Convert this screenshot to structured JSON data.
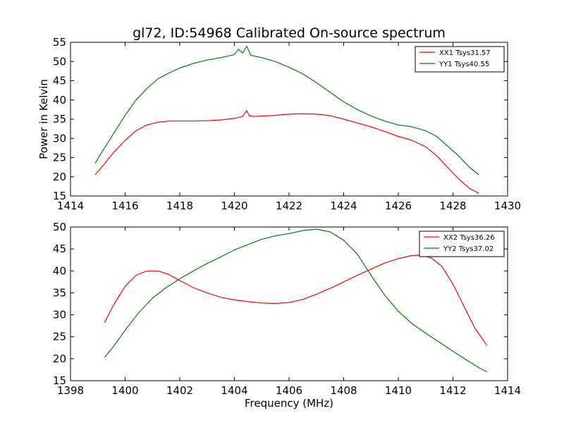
{
  "title": "gl72, ID:54968 Calibrated On-source spectrum",
  "chart_data": [
    {
      "type": "line",
      "title": "gl72, ID:54968 Calibrated On-source spectrum",
      "xlabel": "",
      "ylabel": "Power in Kelvin",
      "xlim": [
        1414,
        1430
      ],
      "ylim": [
        15,
        55
      ],
      "xticks": [
        1414,
        1416,
        1418,
        1420,
        1422,
        1424,
        1426,
        1428,
        1430
      ],
      "yticks": [
        15,
        20,
        25,
        30,
        35,
        40,
        45,
        50,
        55
      ],
      "grid": false,
      "legend_position": "top-right",
      "series": [
        {
          "name": "XX1 Tsys31.57",
          "color": "#ff0000",
          "x": [
            1414.9,
            1415.2,
            1415.6,
            1416.0,
            1416.4,
            1416.8,
            1417.2,
            1417.6,
            1418.0,
            1418.5,
            1419.0,
            1419.5,
            1420.0,
            1420.3,
            1420.45,
            1420.55,
            1420.7,
            1421.0,
            1421.5,
            1422.0,
            1422.5,
            1423.0,
            1423.5,
            1424.0,
            1424.5,
            1425.0,
            1425.5,
            1426.0,
            1426.5,
            1427.0,
            1427.4,
            1427.8,
            1428.2,
            1428.6,
            1428.95
          ],
          "y": [
            20.5,
            23.0,
            26.5,
            29.5,
            32.0,
            33.5,
            34.2,
            34.5,
            34.5,
            34.5,
            34.6,
            34.8,
            35.2,
            35.7,
            37.2,
            35.9,
            35.7,
            35.8,
            36.0,
            36.3,
            36.4,
            36.3,
            35.9,
            35.0,
            34.0,
            33.0,
            31.8,
            30.5,
            29.5,
            27.8,
            25.5,
            22.5,
            19.5,
            17.0,
            15.7
          ]
        },
        {
          "name": "YY1 Tsys40.55",
          "color": "#008000",
          "x": [
            1414.9,
            1415.2,
            1415.6,
            1416.0,
            1416.4,
            1416.8,
            1417.2,
            1417.6,
            1418.0,
            1418.5,
            1419.0,
            1419.5,
            1420.0,
            1420.15,
            1420.3,
            1420.45,
            1420.6,
            1421.0,
            1421.5,
            1422.0,
            1422.5,
            1423.0,
            1423.5,
            1424.0,
            1424.5,
            1425.0,
            1425.5,
            1426.0,
            1426.5,
            1427.0,
            1427.4,
            1427.8,
            1428.2,
            1428.6,
            1428.95
          ],
          "y": [
            23.5,
            27.0,
            31.5,
            36.0,
            40.0,
            43.0,
            45.5,
            47.0,
            48.3,
            49.5,
            50.4,
            51.0,
            51.8,
            53.2,
            52.2,
            54.0,
            51.6,
            51.0,
            50.0,
            48.5,
            46.8,
            44.5,
            42.0,
            39.5,
            37.5,
            35.8,
            34.5,
            33.5,
            33.0,
            32.0,
            30.5,
            28.0,
            25.5,
            22.5,
            20.5
          ]
        }
      ]
    },
    {
      "type": "line",
      "title": "",
      "xlabel": "Frequency (MHz)",
      "ylabel": "",
      "xlim": [
        1398,
        1414
      ],
      "ylim": [
        15,
        50
      ],
      "xticks": [
        1398,
        1400,
        1402,
        1404,
        1406,
        1408,
        1410,
        1412,
        1414
      ],
      "yticks": [
        15,
        20,
        25,
        30,
        35,
        40,
        45,
        50
      ],
      "grid": false,
      "legend_position": "top-right",
      "series": [
        {
          "name": "XX2 Tsys36.26",
          "color": "#ff0000",
          "x": [
            1399.25,
            1399.6,
            1400.0,
            1400.4,
            1400.8,
            1401.2,
            1401.6,
            1402.0,
            1402.5,
            1403.0,
            1403.5,
            1404.0,
            1404.5,
            1405.0,
            1405.5,
            1406.0,
            1406.5,
            1407.0,
            1407.5,
            1408.0,
            1408.5,
            1409.0,
            1409.5,
            1410.0,
            1410.5,
            1410.8,
            1411.2,
            1411.6,
            1412.0,
            1412.4,
            1412.8,
            1413.25
          ],
          "y": [
            28.3,
            32.5,
            36.5,
            39.0,
            40.0,
            40.0,
            39.2,
            37.8,
            36.2,
            35.0,
            34.0,
            33.4,
            33.0,
            32.7,
            32.6,
            32.8,
            33.5,
            34.7,
            36.0,
            37.5,
            39.0,
            40.4,
            41.8,
            42.8,
            43.5,
            43.6,
            43.0,
            41.0,
            37.0,
            32.0,
            27.0,
            23.0
          ]
        },
        {
          "name": "YY2 Tsys37.02",
          "color": "#008000",
          "x": [
            1399.25,
            1399.6,
            1400.0,
            1400.5,
            1401.0,
            1401.5,
            1402.0,
            1402.5,
            1403.0,
            1403.5,
            1404.0,
            1404.5,
            1405.0,
            1405.5,
            1406.0,
            1406.5,
            1407.0,
            1407.5,
            1408.0,
            1408.5,
            1409.0,
            1409.5,
            1410.0,
            1410.5,
            1411.0,
            1411.5,
            1412.0,
            1412.5,
            1413.0,
            1413.25
          ],
          "y": [
            20.3,
            23.0,
            26.5,
            30.5,
            33.8,
            36.2,
            38.2,
            40.0,
            41.7,
            43.2,
            44.8,
            46.0,
            47.2,
            48.0,
            48.5,
            49.2,
            49.5,
            48.9,
            47.0,
            43.8,
            39.0,
            34.5,
            30.8,
            28.0,
            25.8,
            23.8,
            21.7,
            19.7,
            17.8,
            17.0
          ]
        }
      ]
    }
  ]
}
